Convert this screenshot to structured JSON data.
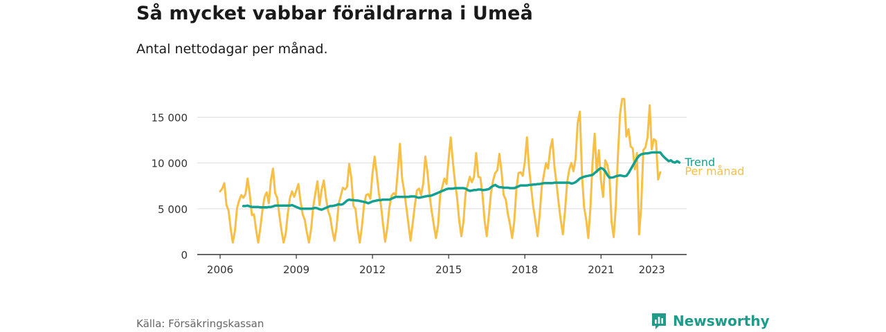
{
  "header": {
    "title": "Så mycket vabbar föräldrarna i Umeå",
    "subtitle": "Antal nettodagar per månad."
  },
  "footer": {
    "source": "Källa: Försäkringskassan",
    "brand": "Newsworthy"
  },
  "colors": {
    "monthly": "#f7bf45",
    "trend": "#13a090",
    "grid": "#dddddd",
    "axis": "#333333",
    "brand": "#1f9b8a"
  },
  "chart_data": {
    "type": "line",
    "title": "Så mycket vabbar föräldrarna i Umeå",
    "subtitle": "Antal nettodagar per månad.",
    "ylim": [
      0,
      17000
    ],
    "yticks": [
      0,
      5000,
      10000,
      15000
    ],
    "ytick_labels": [
      "0",
      "5 000",
      "10 000",
      "15 000"
    ],
    "xlim": [
      2006.0,
      2023.5
    ],
    "xticks": [
      2006,
      2009,
      2012,
      2015,
      2018,
      2021,
      2023
    ],
    "xtick_labels": [
      "2006",
      "2009",
      "2012",
      "2015",
      "2018",
      "2021",
      "2023"
    ],
    "grid": true,
    "legend": "end-of-line labels",
    "series": [
      {
        "name": "Per månad",
        "start": 2006.0,
        "step": 0.08333,
        "values": [
          6900,
          7200,
          7800,
          5400,
          4800,
          2800,
          1300,
          2600,
          5100,
          5900,
          6500,
          6200,
          6600,
          8300,
          6600,
          4300,
          4400,
          2700,
          1300,
          2900,
          4800,
          6300,
          6800,
          5600,
          8100,
          9400,
          6700,
          6200,
          4300,
          2600,
          1300,
          2300,
          4500,
          6200,
          6900,
          6300,
          7000,
          7700,
          5800,
          4400,
          3800,
          2400,
          1300,
          2800,
          5200,
          6700,
          8000,
          5400,
          7100,
          8100,
          6200,
          4800,
          4100,
          2700,
          1500,
          2900,
          5500,
          6400,
          7300,
          7100,
          7400,
          9900,
          8400,
          5300,
          5000,
          2800,
          1300,
          3000,
          5400,
          6500,
          6600,
          6100,
          8800,
          10700,
          8900,
          6700,
          5400,
          3300,
          1400,
          2900,
          5200,
          6400,
          6700,
          6500,
          9200,
          12100,
          8300,
          6900,
          5200,
          3300,
          1500,
          3400,
          5300,
          7000,
          7200,
          6500,
          7800,
          10700,
          9000,
          6500,
          4700,
          3200,
          1800,
          3200,
          6500,
          7400,
          8300,
          7700,
          10500,
          12800,
          10100,
          7900,
          6200,
          3700,
          2000,
          3600,
          6700,
          7600,
          8500,
          7900,
          8500,
          11100,
          8500,
          8400,
          6500,
          3700,
          2000,
          4200,
          6700,
          8100,
          8900,
          9200,
          11000,
          9000,
          6500,
          6000,
          4400,
          3300,
          1800,
          3600,
          7100,
          8900,
          9000,
          8600,
          10100,
          12800,
          9500,
          7300,
          5200,
          3700,
          2000,
          4300,
          7400,
          8700,
          10000,
          9400,
          11500,
          12600,
          9600,
          7700,
          5600,
          3700,
          2200,
          4800,
          7900,
          9300,
          10000,
          9100,
          10500,
          14400,
          15600,
          8700,
          5200,
          3800,
          1800,
          5100,
          10000,
          13200,
          9000,
          11400,
          8000,
          6300,
          10300,
          9800,
          8600,
          3600,
          1900,
          5300,
          10800,
          15400,
          17000,
          17000,
          12900,
          13700,
          11800,
          11600,
          9300,
          11100,
          2200,
          5200,
          11400,
          11700,
          12800,
          16300,
          11500,
          12600,
          12400,
          8200,
          9000
        ]
      },
      {
        "name": "Trend",
        "start": 2006.917,
        "step": 0.08333,
        "values": [
          5300,
          5300,
          5350,
          5250,
          5200,
          5200,
          5200,
          5200,
          5150,
          5150,
          5150,
          5150,
          5200,
          5200,
          5250,
          5350,
          5350,
          5350,
          5350,
          5350,
          5350,
          5350,
          5350,
          5400,
          5300,
          5200,
          5100,
          5000,
          5000,
          5000,
          5000,
          5000,
          5000,
          5050,
          5100,
          5050,
          4950,
          4900,
          5000,
          5100,
          5200,
          5300,
          5300,
          5350,
          5400,
          5500,
          5450,
          5500,
          5700,
          5900,
          6000,
          5950,
          5950,
          5900,
          5900,
          5850,
          5800,
          5750,
          5700,
          5600,
          5700,
          5800,
          5850,
          5900,
          5950,
          5950,
          6000,
          6000,
          6000,
          6000,
          6100,
          6200,
          6300,
          6300,
          6300,
          6300,
          6300,
          6300,
          6300,
          6350,
          6350,
          6350,
          6250,
          6200,
          6250,
          6300,
          6350,
          6400,
          6400,
          6450,
          6550,
          6650,
          6750,
          6850,
          6950,
          7050,
          7150,
          7200,
          7200,
          7200,
          7250,
          7250,
          7250,
          7250,
          7250,
          7200,
          7050,
          6950,
          7000,
          7050,
          7050,
          7100,
          7100,
          7050,
          7050,
          7100,
          7150,
          7350,
          7500,
          7600,
          7450,
          7350,
          7350,
          7300,
          7300,
          7300,
          7250,
          7250,
          7250,
          7350,
          7450,
          7550,
          7550,
          7550,
          7550,
          7600,
          7600,
          7650,
          7650,
          7700,
          7700,
          7750,
          7800,
          7800,
          7800,
          7800,
          7800,
          7850,
          7850,
          7850,
          7850,
          7850,
          7850,
          7850,
          7850,
          7750,
          7800,
          7900,
          8100,
          8300,
          8400,
          8500,
          8550,
          8600,
          8650,
          8700,
          8900,
          9100,
          9300,
          9450,
          9350,
          9100,
          8700,
          8400,
          8400,
          8450,
          8550,
          8600,
          8650,
          8600,
          8550,
          8600,
          8900,
          9300,
          9700,
          10100,
          10500,
          10800,
          10950,
          11000,
          11050,
          11050,
          11100,
          11150,
          11150,
          11150,
          11150,
          11150,
          10850,
          10600,
          10400,
          10200,
          10300,
          10100,
          10050,
          10200,
          10050
        ]
      }
    ]
  }
}
